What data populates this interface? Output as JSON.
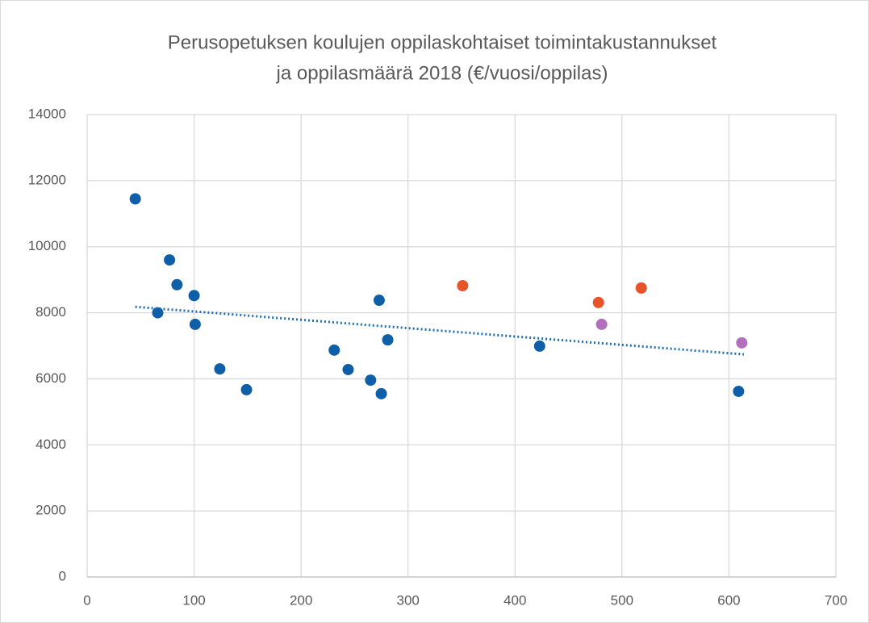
{
  "chart_data": {
    "type": "scatter",
    "title": [
      "Perusopetuksen koulujen oppilaskohtaiset toimintakustannukset",
      "ja oppilasmäärä 2018 (€/vuosi/oppilas)"
    ],
    "xlim": [
      0,
      700
    ],
    "xticks": [
      0,
      100,
      200,
      300,
      400,
      500,
      600,
      700
    ],
    "ylim": [
      0,
      14000
    ],
    "yticks": [
      0,
      2000,
      4000,
      6000,
      8000,
      10000,
      12000,
      14000
    ],
    "grid": true,
    "series": [
      {
        "color": "#0e5ea8",
        "x": [
          45,
          66,
          77,
          84,
          100,
          101,
          124,
          149,
          231,
          244,
          265,
          275,
          273,
          281,
          423,
          609
        ],
        "values": [
          11450,
          8000,
          9600,
          8850,
          8520,
          7650,
          6300,
          5670,
          6870,
          6280,
          5960,
          5550,
          8380,
          7180,
          6990,
          5620
        ]
      },
      {
        "color": "#e8542a",
        "x": [
          351,
          478,
          518
        ],
        "values": [
          8820,
          8310,
          8750
        ]
      },
      {
        "color": "#b26fbe",
        "x": [
          481,
          612
        ],
        "values": [
          7650,
          7090
        ]
      }
    ],
    "trendline": {
      "color": "#1f6fb4",
      "x": [
        45,
        614
      ],
      "values": [
        8180,
        6740
      ]
    }
  }
}
